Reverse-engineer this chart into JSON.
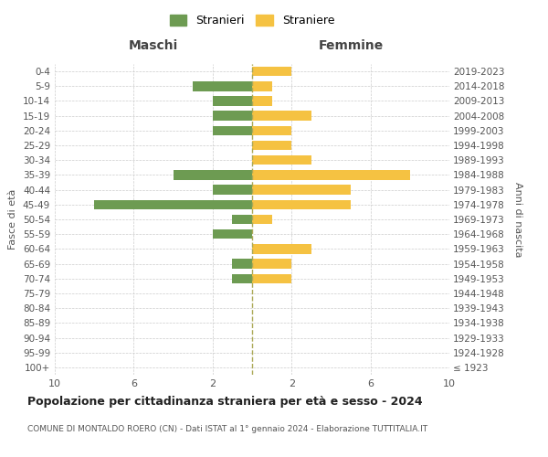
{
  "age_groups": [
    "100+",
    "95-99",
    "90-94",
    "85-89",
    "80-84",
    "75-79",
    "70-74",
    "65-69",
    "60-64",
    "55-59",
    "50-54",
    "45-49",
    "40-44",
    "35-39",
    "30-34",
    "25-29",
    "20-24",
    "15-19",
    "10-14",
    "5-9",
    "0-4"
  ],
  "birth_years": [
    "≤ 1923",
    "1924-1928",
    "1929-1933",
    "1934-1938",
    "1939-1943",
    "1944-1948",
    "1949-1953",
    "1954-1958",
    "1959-1963",
    "1964-1968",
    "1969-1973",
    "1974-1978",
    "1979-1983",
    "1984-1988",
    "1989-1993",
    "1994-1998",
    "1999-2003",
    "2004-2008",
    "2009-2013",
    "2014-2018",
    "2019-2023"
  ],
  "maschi": [
    0,
    0,
    0,
    0,
    0,
    0,
    1,
    1,
    0,
    2,
    1,
    8,
    2,
    4,
    0,
    0,
    2,
    2,
    2,
    3,
    0
  ],
  "femmine": [
    0,
    0,
    0,
    0,
    0,
    0,
    2,
    2,
    3,
    0,
    1,
    5,
    5,
    8,
    3,
    2,
    2,
    3,
    1,
    1,
    2
  ],
  "color_maschi": "#6d9b52",
  "color_femmine": "#f5c242",
  "title": "Popolazione per cittadinanza straniera per età e sesso - 2024",
  "subtitle": "COMUNE DI MONTALDO ROERO (CN) - Dati ISTAT al 1° gennaio 2024 - Elaborazione TUTTITALIA.IT",
  "ylabel_left": "Fasce di età",
  "ylabel_right": "Anni di nascita",
  "xlabel_maschi": "Maschi",
  "xlabel_femmine": "Femmine",
  "legend_maschi": "Stranieri",
  "legend_femmine": "Straniere",
  "xlim": 10,
  "background_color": "#ffffff",
  "grid_color": "#cccccc"
}
